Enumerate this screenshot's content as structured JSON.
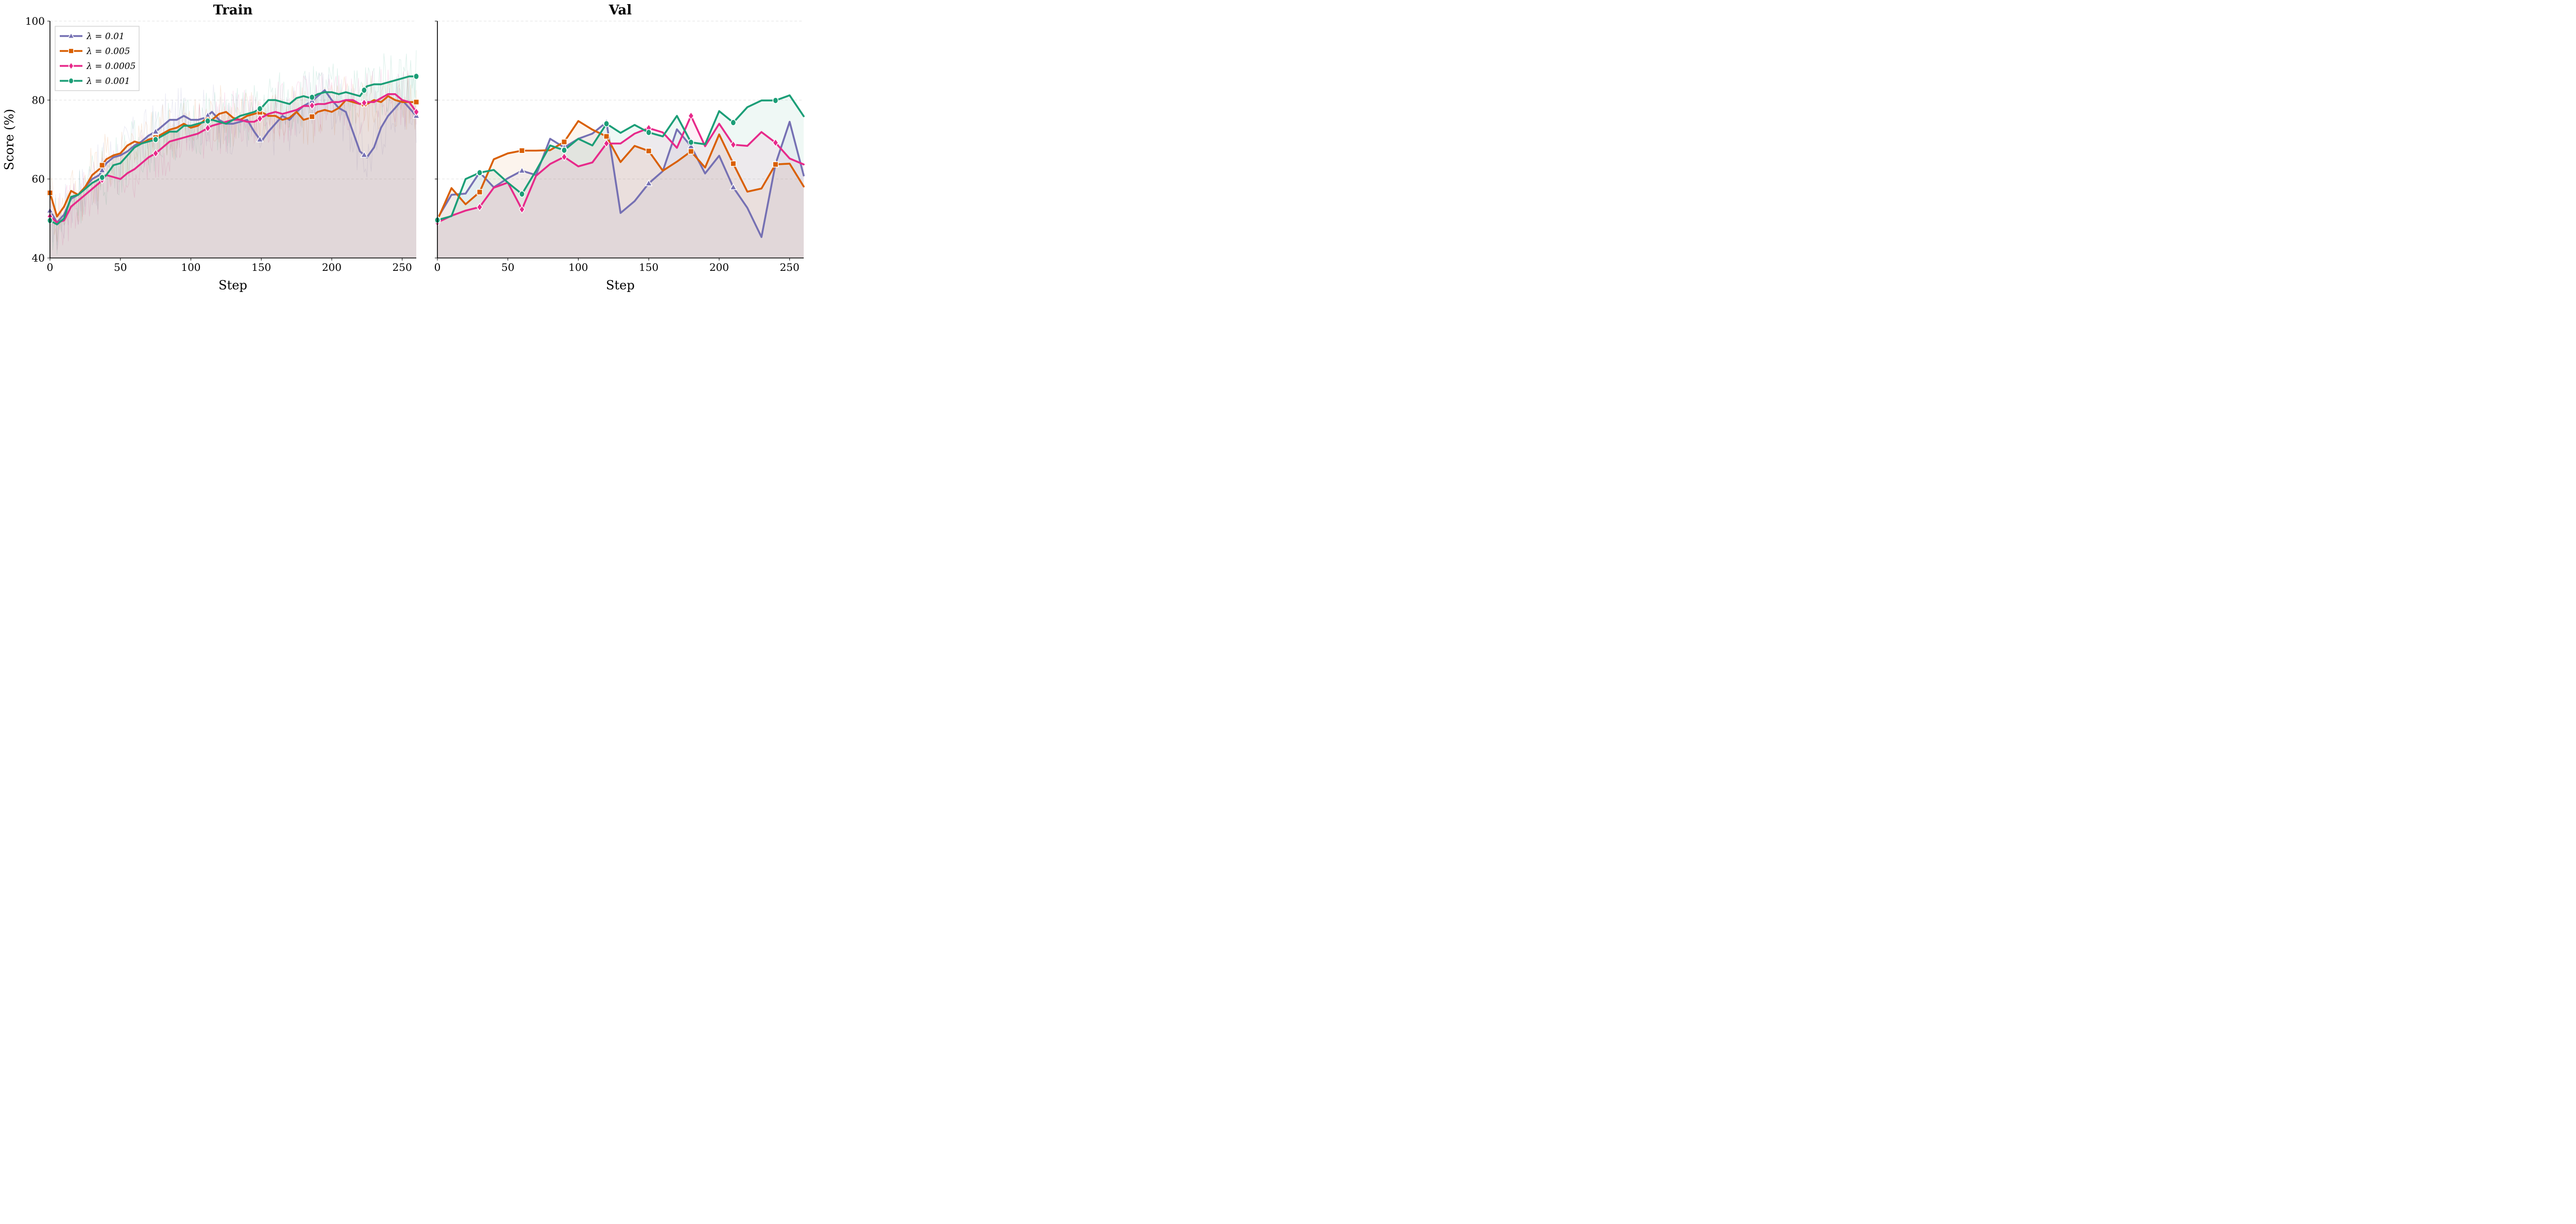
{
  "figure": {
    "ylabel": "Score (%)",
    "xlabel": "Step"
  },
  "legend": {
    "items": [
      {
        "label": "λ = 0.01",
        "color": "#7570b3",
        "marker": "triangle"
      },
      {
        "label": "λ = 0.005",
        "color": "#d95f02",
        "marker": "square"
      },
      {
        "label": "λ = 0.0005",
        "color": "#e7298a",
        "marker": "diamond"
      },
      {
        "label": "λ = 0.001",
        "color": "#1b9e77",
        "marker": "circle"
      }
    ]
  },
  "chart_data": [
    {
      "type": "line",
      "title": "Train",
      "xlabel": "Step",
      "ylabel": "Score (%)",
      "xlim": [
        0,
        260
      ],
      "ylim": [
        40,
        100
      ],
      "xticks": [
        "0",
        "50",
        "100",
        "150",
        "200",
        "250"
      ],
      "yticks": [
        "40",
        "60",
        "80",
        "100"
      ],
      "grid": "horizontal dashed",
      "legend_position": "upper left",
      "note": "smoothed curves over faint raw traces, area-filled beneath",
      "x": [
        0,
        5,
        10,
        15,
        20,
        25,
        30,
        35,
        40,
        45,
        50,
        55,
        60,
        65,
        70,
        75,
        80,
        85,
        90,
        95,
        100,
        105,
        110,
        115,
        120,
        125,
        130,
        135,
        140,
        145,
        150,
        155,
        160,
        165,
        170,
        175,
        180,
        185,
        190,
        195,
        200,
        205,
        210,
        215,
        220,
        225,
        230,
        235,
        240,
        245,
        250,
        255,
        260
      ],
      "marker_x": [
        0,
        37,
        75,
        112,
        149,
        186,
        223,
        260
      ],
      "series": [
        {
          "name": "λ = 0.01",
          "color": "#7570b3",
          "marker": "triangle",
          "values": [
            52,
            49,
            51,
            55,
            56,
            58,
            60,
            61,
            64,
            65.5,
            66,
            67,
            68.5,
            69.5,
            71,
            72,
            73.5,
            75,
            75,
            76,
            75,
            75,
            75.5,
            77,
            75,
            74,
            74,
            74.5,
            75,
            72,
            69.5,
            72,
            74,
            76,
            75,
            77,
            78.5,
            79.5,
            81,
            82.5,
            80,
            78,
            77,
            72,
            67,
            65.5,
            68,
            73,
            76,
            78,
            80,
            78,
            76
          ]
        },
        {
          "name": "λ = 0.005",
          "color": "#d95f02",
          "marker": "square",
          "values": [
            56.5,
            50.5,
            53,
            57,
            56,
            58,
            61,
            62.5,
            65,
            66,
            66.5,
            68.5,
            69.5,
            69,
            70,
            70.5,
            71.5,
            72.5,
            73,
            74,
            73,
            73.5,
            75,
            75,
            76.5,
            77,
            75.5,
            75,
            76,
            76.5,
            77,
            76,
            76,
            75,
            75.5,
            77,
            75,
            75.5,
            77,
            77.5,
            77,
            78,
            80,
            79.5,
            79,
            79,
            80,
            79.5,
            81,
            80,
            79.5,
            79.5,
            79.5
          ]
        },
        {
          "name": "λ = 0.0005",
          "color": "#e7298a",
          "marker": "diamond",
          "values": [
            50.5,
            49,
            49.5,
            53,
            54.5,
            56,
            57.5,
            59,
            61,
            60.5,
            60,
            61.5,
            62.5,
            64,
            65.5,
            66.5,
            68,
            69.5,
            70,
            70.5,
            71,
            71.5,
            72.5,
            73.5,
            74,
            74.5,
            75,
            75,
            74.5,
            74.5,
            75.5,
            76.5,
            77,
            76.5,
            77,
            77.5,
            78.5,
            78.5,
            79,
            79,
            79.5,
            79.5,
            80,
            80,
            79,
            79.5,
            79.5,
            80.5,
            81.5,
            81.5,
            80,
            79.5,
            77
          ]
        },
        {
          "name": "λ = 0.001",
          "color": "#1b9e77",
          "marker": "circle",
          "values": [
            49.5,
            48.5,
            50,
            55.5,
            56,
            57.5,
            59,
            60,
            61,
            63.5,
            64,
            66,
            68,
            69,
            69.5,
            70,
            71,
            72,
            72,
            73.5,
            73.5,
            74,
            74.5,
            75,
            74.5,
            74,
            75,
            76,
            76.5,
            77,
            78,
            80,
            80,
            79.5,
            79,
            80.5,
            81,
            80.5,
            81.5,
            82,
            82,
            81.5,
            82,
            81.5,
            81,
            83.5,
            84,
            84,
            84.5,
            85,
            85.5,
            86,
            86
          ]
        }
      ]
    },
    {
      "type": "line",
      "title": "Val",
      "xlabel": "Step",
      "ylabel": "",
      "xlim": [
        0,
        260
      ],
      "ylim": [
        40,
        100
      ],
      "xticks": [
        "0",
        "50",
        "100",
        "150",
        "200",
        "250"
      ],
      "yticks": [],
      "grid": "horizontal dashed",
      "note": "shares y-axis with Train; area-filled beneath each line",
      "x": [
        0,
        10,
        20,
        30,
        40,
        50,
        60,
        70,
        80,
        90,
        100,
        110,
        120,
        130,
        140,
        150,
        160,
        170,
        180,
        190,
        200,
        210,
        220,
        230,
        240,
        250,
        260
      ],
      "marker_x": [
        0,
        30,
        60,
        90,
        120,
        150,
        180,
        210,
        240
      ],
      "series": [
        {
          "name": "λ = 0.01",
          "color": "#7570b3",
          "marker": "triangle",
          "values": [
            50,
            56,
            56.3,
            61.7,
            57.9,
            60.2,
            62.1,
            61,
            70.2,
            68,
            70.2,
            71.5,
            74.4,
            51.4,
            54.4,
            58.9,
            62,
            72.6,
            68.3,
            61.4,
            65.9,
            57.9,
            52.7,
            45.3,
            63.8,
            74.5,
            60.9
          ]
        },
        {
          "name": "λ = 0.005",
          "color": "#d95f02",
          "marker": "square",
          "values": [
            49.6,
            57.7,
            53.6,
            56.7,
            65,
            66.5,
            67.2,
            67.2,
            67.3,
            69.4,
            74.7,
            72.5,
            70.8,
            64.3,
            68.4,
            67.1,
            62.1,
            64.4,
            67,
            62.9,
            71.3,
            63.9,
            56.8,
            57.6,
            63.7,
            63.9,
            58.1
          ]
        },
        {
          "name": "λ = 0.0005",
          "color": "#e7298a",
          "marker": "diamond",
          "values": [
            49,
            50.7,
            52,
            52.9,
            57.8,
            59.1,
            52.3,
            60.8,
            63.8,
            65.6,
            63.2,
            64.2,
            69,
            69,
            71.5,
            72.9,
            71.8,
            67.9,
            76,
            68.3,
            74,
            68.7,
            68.4,
            71.9,
            69.2,
            65.2,
            63.7
          ]
        },
        {
          "name": "λ = 0.001",
          "color": "#1b9e77",
          "marker": "circle",
          "values": [
            49.6,
            50.6,
            60,
            61.6,
            62.3,
            59.1,
            56.2,
            62.1,
            68.5,
            67.3,
            70.2,
            68.5,
            74,
            71.7,
            73.7,
            71.8,
            70.8,
            76,
            69.3,
            68.8,
            77.2,
            74.3,
            78.2,
            79.9,
            79.9,
            81.2,
            75.9
          ]
        }
      ]
    }
  ]
}
